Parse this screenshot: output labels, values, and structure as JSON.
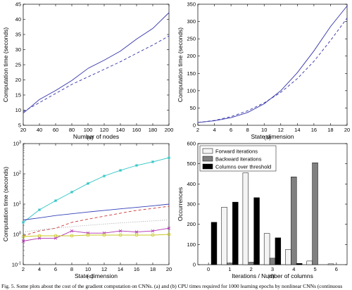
{
  "chart_data": [
    {
      "type": "line",
      "panel": "(a)",
      "xlabel": "Number of nodes",
      "ylabel": "Computation time (seconds)",
      "xlim": [
        20,
        200
      ],
      "ylim": [
        5,
        45
      ],
      "xticks": [
        20,
        40,
        60,
        80,
        100,
        120,
        140,
        160,
        180,
        200
      ],
      "yticks": [
        5,
        10,
        15,
        20,
        25,
        30,
        35,
        40,
        45
      ],
      "grid": false,
      "series": [
        {
          "style": "solid",
          "color": "#3333aa",
          "x": [
            20,
            40,
            60,
            80,
            100,
            120,
            140,
            160,
            180,
            200
          ],
          "values": [
            9.0,
            13.5,
            16.5,
            19.8,
            23.8,
            26.5,
            29.5,
            33.5,
            37.0,
            42.2
          ]
        },
        {
          "style": "dashed",
          "color": "#3333aa",
          "x": [
            20,
            40,
            60,
            80,
            100,
            120,
            140,
            160,
            180,
            200
          ],
          "values": [
            9.5,
            12.5,
            15.5,
            18.5,
            21.0,
            23.5,
            26.0,
            28.8,
            31.5,
            34.5
          ]
        }
      ]
    },
    {
      "type": "line",
      "panel": "(b)",
      "xlabel": "State dimension",
      "ylabel": "Computation time (seconds)",
      "xlim": [
        2,
        20
      ],
      "ylim": [
        0,
        350
      ],
      "xticks": [
        2,
        4,
        6,
        8,
        10,
        12,
        14,
        16,
        18,
        20
      ],
      "yticks": [
        0,
        50,
        100,
        150,
        200,
        250,
        300,
        350
      ],
      "grid": false,
      "series": [
        {
          "style": "solid",
          "color": "#3333aa",
          "x": [
            2,
            4,
            6,
            8,
            10,
            12,
            14,
            16,
            18,
            20
          ],
          "values": [
            8,
            13,
            22,
            37,
            62,
            100,
            152,
            215,
            285,
            345
          ]
        },
        {
          "style": "dashed",
          "color": "#3333aa",
          "x": [
            2,
            4,
            6,
            8,
            10,
            12,
            14,
            16,
            18,
            20
          ],
          "values": [
            8,
            14,
            25,
            42,
            65,
            95,
            135,
            185,
            245,
            310
          ]
        }
      ]
    },
    {
      "type": "line",
      "panel": "(c)",
      "xlabel": "State dimension",
      "ylabel": "Computation time (seconds)",
      "yscale": "log",
      "xlim": [
        2,
        20
      ],
      "ylim": [
        0.1,
        1000
      ],
      "xticks": [
        2,
        4,
        6,
        8,
        10,
        12,
        14,
        16,
        18,
        20
      ],
      "yticks": [
        "10^-1",
        "10^0",
        "10^1",
        "10^2",
        "10^3"
      ],
      "grid": false,
      "series": [
        {
          "style": "solid",
          "marker": "asterisk",
          "color": "#2ec4c4",
          "x": [
            2,
            4,
            6,
            8,
            10,
            12,
            14,
            16,
            18,
            20
          ],
          "values": [
            2.5,
            6.5,
            13,
            25,
            48,
            85,
            130,
            190,
            250,
            340
          ]
        },
        {
          "style": "solid",
          "color": "#3340b8",
          "x": [
            2,
            4,
            6,
            8,
            10,
            12,
            14,
            16,
            18,
            20
          ],
          "values": [
            3.0,
            3.5,
            4.2,
            4.8,
            5.5,
            6.2,
            7.0,
            7.8,
            8.8,
            10.0
          ]
        },
        {
          "style": "dashed",
          "color": "#cc3333",
          "x": [
            2,
            4,
            6,
            8,
            10,
            12,
            14,
            16,
            18,
            20
          ],
          "values": [
            0.9,
            1.3,
            1.6,
            2.5,
            3.2,
            4.0,
            5.0,
            6.2,
            7.2,
            8.5
          ]
        },
        {
          "style": "dotted",
          "color": "#999999",
          "x": [
            2,
            4,
            6,
            8,
            10,
            12,
            14,
            16,
            18,
            20
          ],
          "values": [
            1.2,
            1.4,
            1.6,
            1.8,
            2.0,
            2.2,
            2.4,
            2.6,
            2.8,
            3.0
          ]
        },
        {
          "style": "solid",
          "marker": "x",
          "color": "#b030b0",
          "x": [
            2,
            4,
            6,
            8,
            10,
            12,
            14,
            16,
            18,
            20
          ],
          "values": [
            0.6,
            0.75,
            0.75,
            1.3,
            1.1,
            1.1,
            1.3,
            1.2,
            1.3,
            1.6
          ]
        },
        {
          "style": "solid",
          "marker": "circle",
          "color": "#c8c820",
          "x": [
            2,
            4,
            6,
            8,
            10,
            12,
            14,
            16,
            18,
            20
          ],
          "values": [
            0.85,
            0.9,
            0.9,
            0.9,
            0.95,
            0.95,
            0.95,
            0.95,
            0.95,
            1.0
          ]
        }
      ]
    },
    {
      "type": "bar",
      "panel": "(d)",
      "xlabel": "Iterations / Number of columns",
      "ylabel": "Occurrences",
      "categories": [
        "0",
        "1",
        "2",
        "3",
        "4",
        "5",
        "6"
      ],
      "ylim": [
        0,
        600
      ],
      "yticks": [
        0,
        100,
        200,
        300,
        400,
        500,
        600
      ],
      "grid": false,
      "legend_position": "top-left",
      "series": [
        {
          "name": "Forward iterations",
          "color": "#f4f4f4",
          "values": [
            0,
            285,
            455,
            155,
            75,
            18,
            4
          ]
        },
        {
          "name": "Backward iterations",
          "color": "#808080",
          "values": [
            0,
            8,
            12,
            32,
            435,
            505,
            0
          ]
        },
        {
          "name": "Columns over threshold",
          "color": "#000000",
          "values": [
            210,
            310,
            332,
            133,
            6,
            0,
            0
          ]
        }
      ]
    }
  ],
  "caption": "Fig. 5.   Some plots about the cost of the gradient computation on CNNs. (a) and (b) CPU times required for 1000 learning epochs by nonlinear CNNs (continuous"
}
